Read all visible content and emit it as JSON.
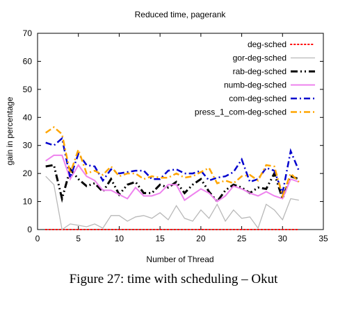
{
  "figure": {
    "caption": "Figure 27: time with scheduling – Okut"
  },
  "chart_data": {
    "type": "line",
    "title": "Reduced time, pagerank",
    "xlabel": "Number of Thread",
    "ylabel": "gain in percentage",
    "xlim": [
      0,
      35
    ],
    "ylim": [
      0,
      70
    ],
    "xticks": [
      0,
      5,
      10,
      15,
      20,
      25,
      30,
      35
    ],
    "yticks": [
      0,
      10,
      20,
      30,
      40,
      50,
      60,
      70
    ],
    "grid": false,
    "legend_position": "top-right",
    "x": [
      1,
      2,
      3,
      4,
      5,
      6,
      7,
      8,
      9,
      10,
      11,
      12,
      13,
      14,
      15,
      16,
      17,
      18,
      19,
      20,
      21,
      22,
      23,
      24,
      25,
      26,
      27,
      28,
      29,
      30,
      31,
      32
    ],
    "series": [
      {
        "name": "deg-sched",
        "color": "#ff0000",
        "dash": "1.5,3.5",
        "width": 2,
        "values": [
          0,
          0,
          0,
          0,
          0,
          0,
          0,
          0,
          0,
          0,
          0,
          0,
          0,
          0,
          0,
          0,
          0,
          0,
          0,
          0,
          0,
          0,
          0,
          0,
          0,
          0,
          0,
          0,
          0,
          0,
          0,
          0
        ]
      },
      {
        "name": "gor-deg-sched",
        "color": "#b8b8b8",
        "dash": "",
        "width": 1.3,
        "values": [
          19,
          16,
          0,
          2,
          1.5,
          1,
          2,
          0.5,
          5,
          5,
          3,
          4.5,
          5,
          4,
          6,
          3.5,
          8.5,
          4,
          3,
          7,
          4,
          9,
          3,
          7,
          4,
          4.5,
          0.5,
          9,
          7,
          3.5,
          11,
          10.5
        ]
      },
      {
        "name": "rab-deg-sched",
        "color": "#000000",
        "dash": "10,4,2,4,2,4",
        "width": 3,
        "values": [
          22.5,
          23,
          11,
          21.5,
          18,
          15.5,
          16.5,
          13.5,
          18,
          12.5,
          16,
          17,
          13,
          13,
          16,
          15,
          17,
          13,
          16,
          18,
          13.5,
          10,
          14,
          16,
          15,
          13,
          15,
          14.5,
          20,
          11,
          19,
          18
        ]
      },
      {
        "name": "numb-deg-sched",
        "color": "#ee82ee",
        "dash": "",
        "width": 2,
        "values": [
          24.5,
          26.5,
          26.5,
          18,
          23,
          19,
          17.5,
          14,
          14,
          12.5,
          11,
          15,
          12,
          12,
          13,
          16,
          16,
          10.5,
          12.5,
          14.5,
          13,
          10,
          12,
          15.5,
          14.5,
          13,
          12,
          13.5,
          12,
          11,
          18,
          17
        ]
      },
      {
        "name": "com-deg-sched",
        "color": "#0000cd",
        "dash": "9,4,2,4",
        "width": 2.5,
        "values": [
          31,
          30,
          32.5,
          18.5,
          27,
          23,
          22.5,
          17.5,
          21.5,
          20,
          20.5,
          21,
          21,
          18,
          18,
          21,
          21.5,
          20,
          20,
          21,
          17.5,
          18.5,
          19,
          20.5,
          25,
          17,
          18,
          22,
          21,
          13,
          28,
          21
        ]
      },
      {
        "name": "press_1_com-deg-sched",
        "color": "#ffa500",
        "dash": "9,4,2,4",
        "width": 2.5,
        "values": [
          34.5,
          36.5,
          34,
          20,
          28.5,
          20,
          21,
          19.5,
          22.5,
          19,
          20,
          20,
          18,
          19,
          18.5,
          18.5,
          20,
          18.5,
          19,
          20.5,
          22,
          16.5,
          17.5,
          16.5,
          19,
          19.5,
          17.5,
          23,
          22.5,
          12,
          20,
          17
        ]
      }
    ]
  }
}
